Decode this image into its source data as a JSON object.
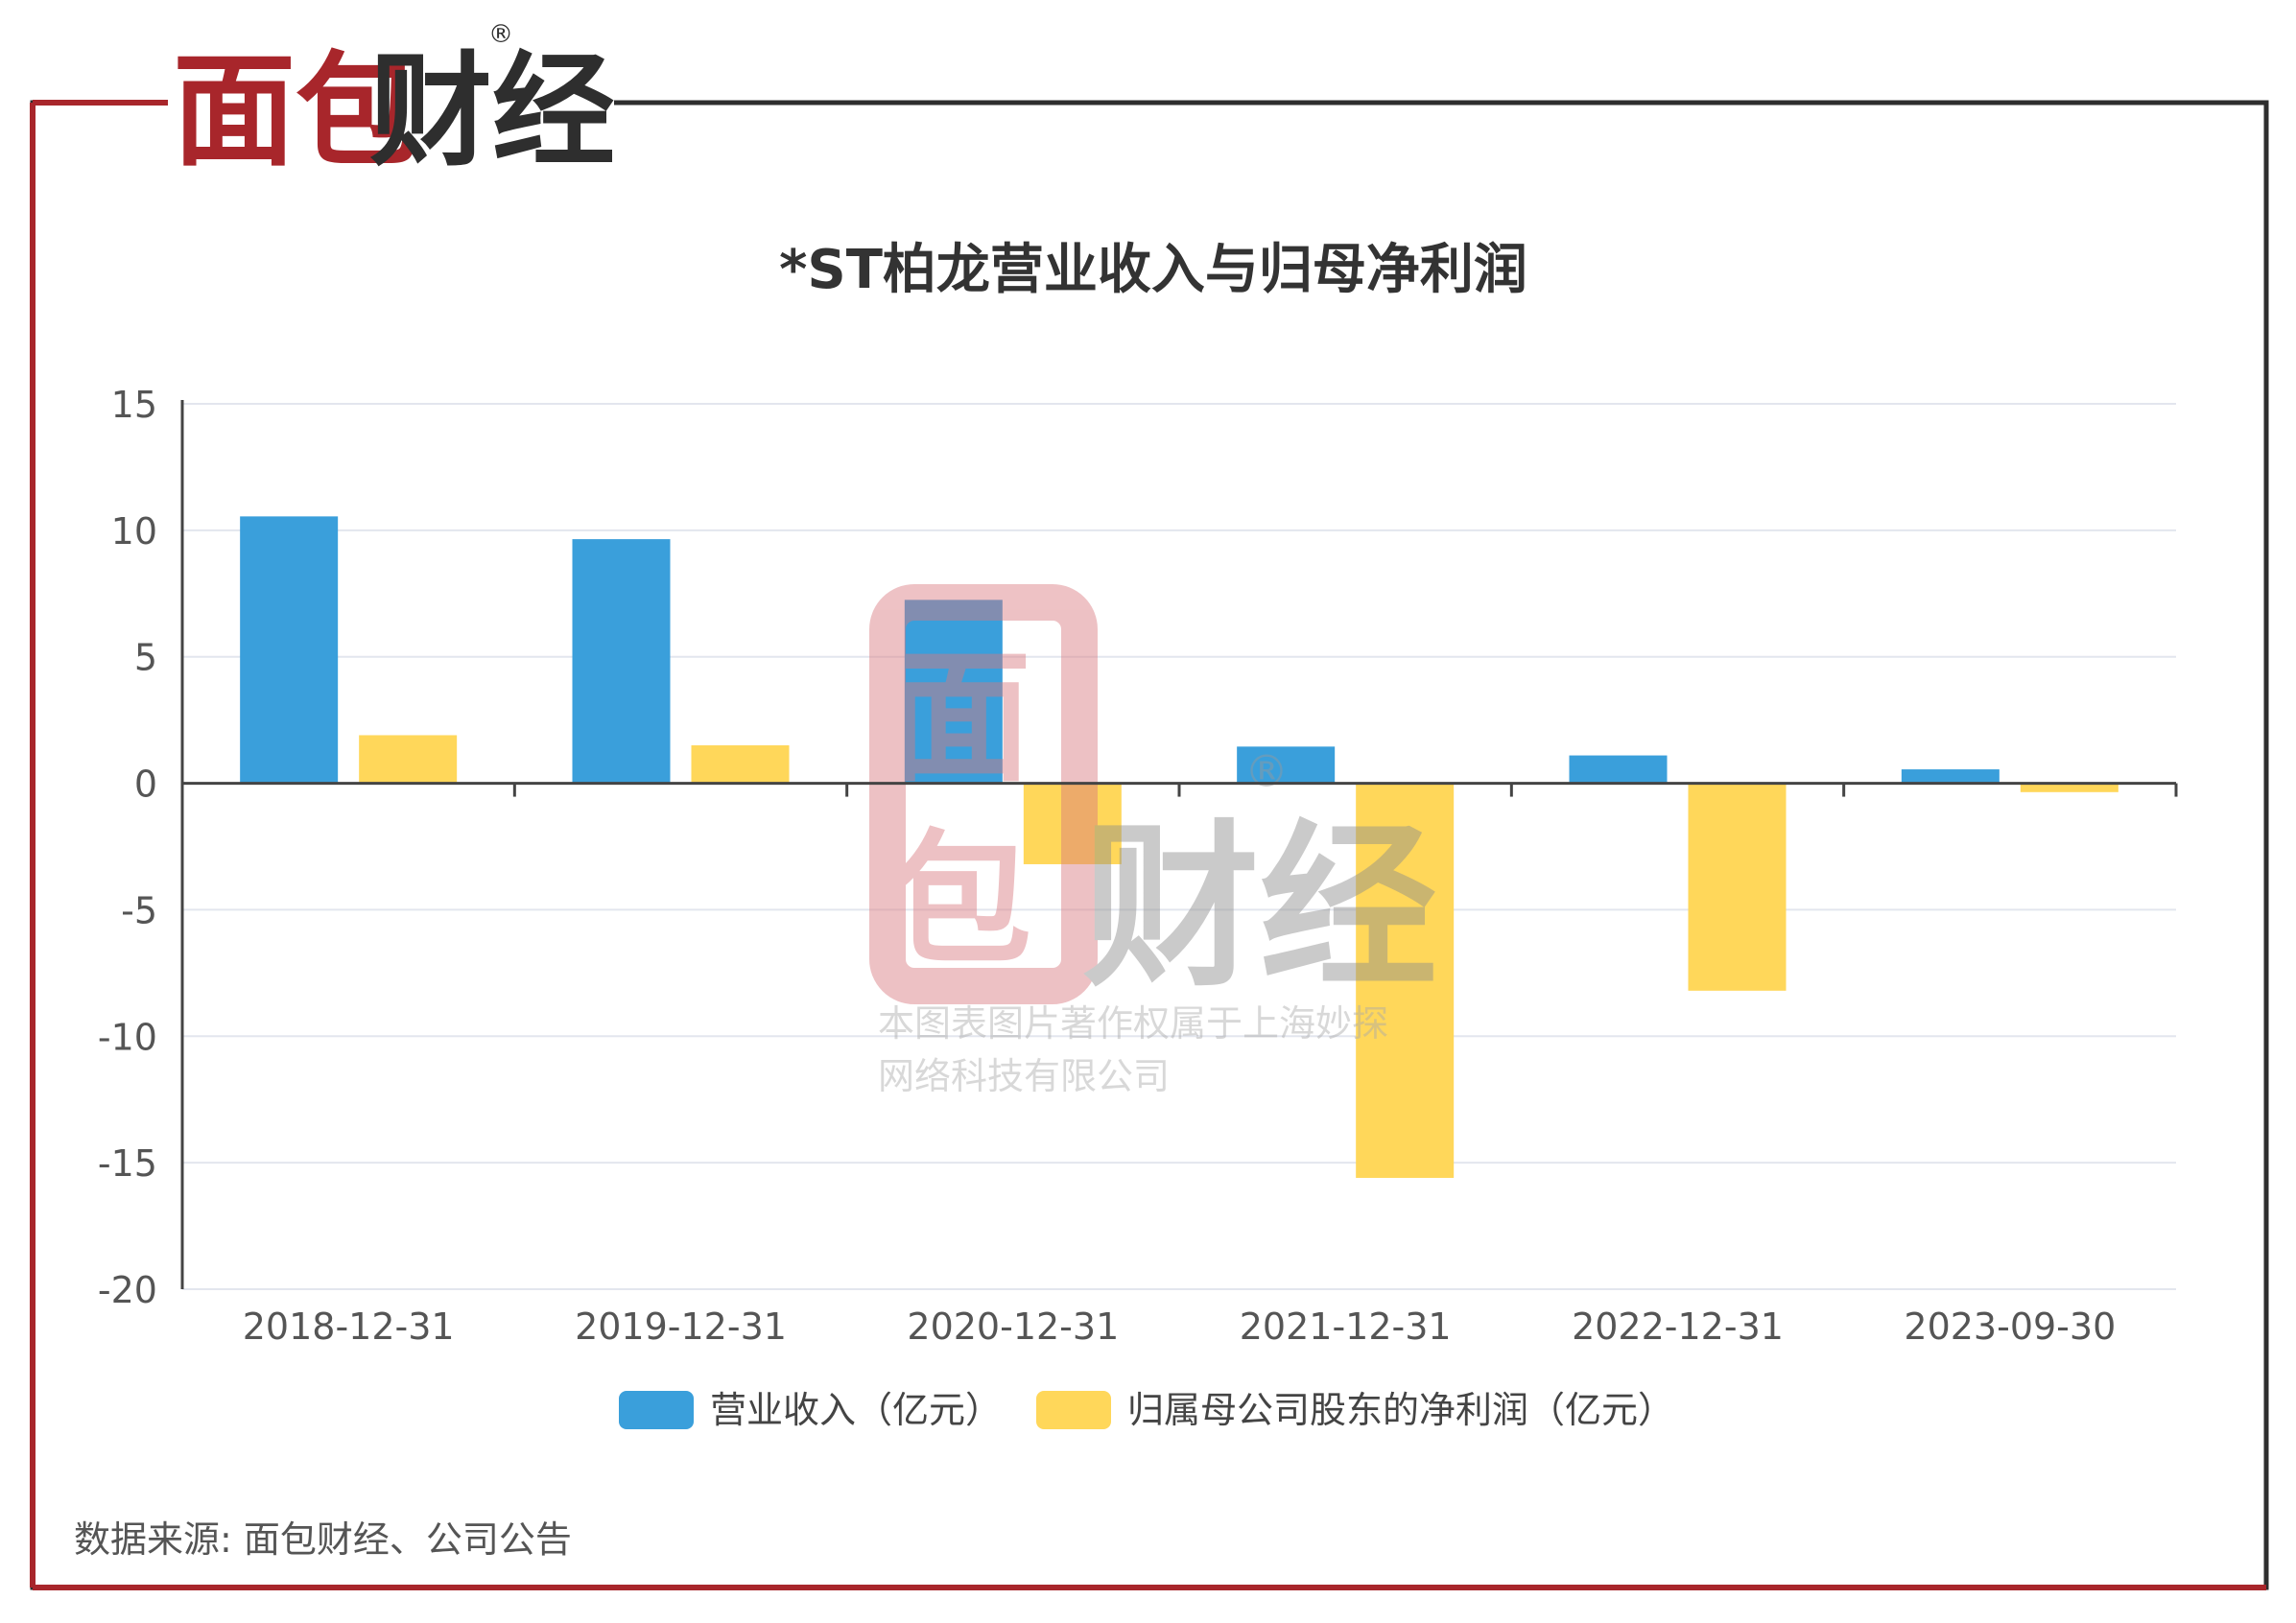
{
  "brand": {
    "name": "面包财经",
    "registered_mark": "®",
    "colors": {
      "red": "#A8262B",
      "dark": "#2E2E2E"
    }
  },
  "watermark": {
    "brand_name": "面包财经",
    "line1": "本图表图片著作权属于上海妙探",
    "line2": "网络科技有限公司"
  },
  "source_note": "数据来源: 面包财经、公司公告",
  "chart_data": {
    "type": "bar",
    "title": "*ST柏龙营业收入与归母净利润",
    "categories": [
      "2018-12-31",
      "2019-12-31",
      "2020-12-31",
      "2021-12-31",
      "2022-12-31",
      "2023-09-30"
    ],
    "series": [
      {
        "name": "营业收入（亿元）",
        "color": "#3A9FDB",
        "values": [
          10.55,
          9.65,
          7.25,
          1.45,
          1.1,
          0.55
        ]
      },
      {
        "name": "归属母公司股东的净利润（亿元）",
        "color": "#FFD75A",
        "values": [
          1.9,
          1.5,
          -3.2,
          -15.6,
          -8.2,
          -0.35
        ]
      }
    ],
    "yticks": [
      15,
      10,
      5,
      0,
      -5,
      -10,
      -15,
      -20
    ],
    "ylim": [
      -20,
      15
    ],
    "grid": true,
    "legend_position": "bottom"
  }
}
